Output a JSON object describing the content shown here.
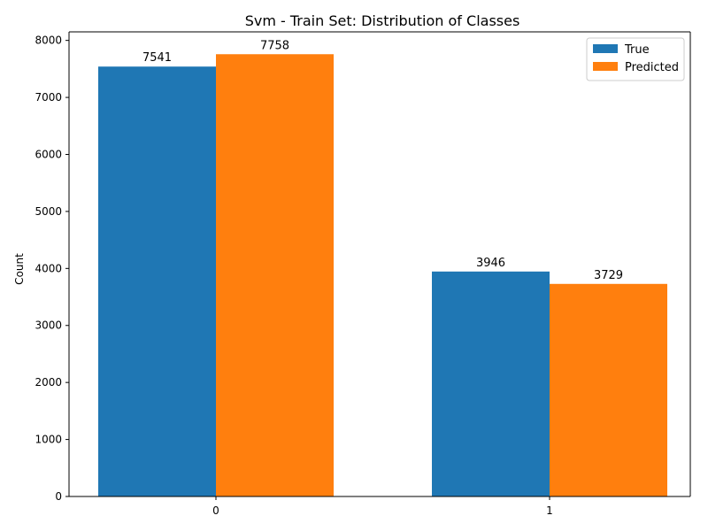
{
  "chart_data": {
    "type": "bar",
    "title": "Svm - Train Set: Distribution of Classes",
    "xlabel": "",
    "ylabel": "Count",
    "categories": [
      "0",
      "1"
    ],
    "series": [
      {
        "name": "True",
        "values": [
          7541,
          3946
        ],
        "color": "#1f77b4"
      },
      {
        "name": "Predicted",
        "values": [
          7758,
          3729
        ],
        "color": "#ff7f0e"
      }
    ],
    "ylim": [
      0,
      8150
    ],
    "yticks": [
      0,
      1000,
      2000,
      3000,
      4000,
      5000,
      6000,
      7000,
      8000
    ],
    "grid": false,
    "legend_position": "top-right",
    "data_labels": true
  }
}
